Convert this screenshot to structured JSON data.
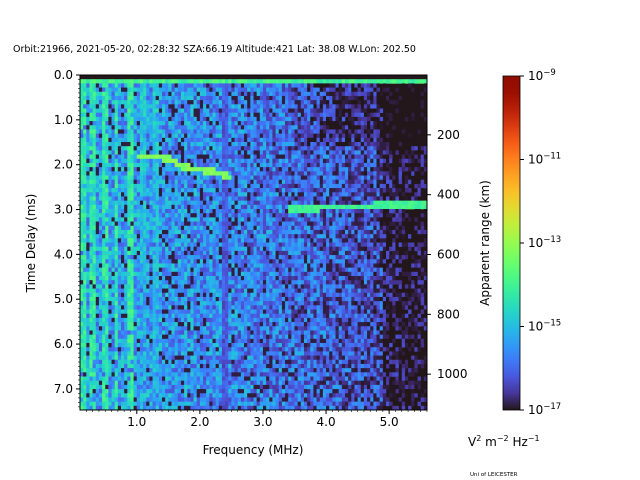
{
  "title": "Orbit:21966, 2021-05-20, 02:28:32 SZA:66.19 Altitude:421 Lat: 38.08 W.Lon: 202.50",
  "footer": "Uni of LEICESTER",
  "colorbar": {
    "label": "Apparent range (km)",
    "units_base": "V",
    "units_parts": [
      "2",
      " m",
      "−2",
      " Hz",
      "−1"
    ],
    "colormap": "turbo",
    "scale": "log",
    "range": [
      1e-17,
      1e-09
    ],
    "ticks": [
      {
        "exp": -9,
        "label": "10",
        "sup": "−9"
      },
      {
        "exp": -11,
        "label": "10",
        "sup": "−11"
      },
      {
        "exp": -13,
        "label": "10",
        "sup": "−13"
      },
      {
        "exp": -15,
        "label": "10",
        "sup": "−15"
      },
      {
        "exp": -17,
        "label": "10",
        "sup": "−17"
      }
    ]
  },
  "chart_data": {
    "type": "heatmap",
    "xlabel": "Frequency (MHz)",
    "ylabel": "Time Delay (ms)",
    "y2label": "Apparent range (km)",
    "xlim": [
      0.1,
      5.6
    ],
    "ylim": [
      7.47,
      0.0
    ],
    "xticks": [
      {
        "v": 1.0,
        "label": "1.0"
      },
      {
        "v": 2.0,
        "label": "2.0"
      },
      {
        "v": 3.0,
        "label": "3.0"
      },
      {
        "v": 4.0,
        "label": "4.0"
      },
      {
        "v": 5.0,
        "label": "5.0"
      }
    ],
    "yticks": [
      {
        "v": 0.0,
        "label": "0.0"
      },
      {
        "v": 1.0,
        "label": "1.0"
      },
      {
        "v": 2.0,
        "label": "2.0"
      },
      {
        "v": 3.0,
        "label": "3.0"
      },
      {
        "v": 4.0,
        "label": "4.0"
      },
      {
        "v": 5.0,
        "label": "5.0"
      },
      {
        "v": 6.0,
        "label": "6.0"
      },
      {
        "v": 7.0,
        "label": "7.0"
      }
    ],
    "y2ticks": [
      {
        "v": 200,
        "label": "200"
      },
      {
        "v": 400,
        "label": "400"
      },
      {
        "v": 600,
        "label": "600"
      },
      {
        "v": 800,
        "label": "800"
      },
      {
        "v": 1000,
        "label": "1000"
      }
    ],
    "km_per_ms": 149.9,
    "grid": {
      "freq_bins": 110,
      "delay_bins": 80
    },
    "background_log10": {
      "low_freq": -15.3,
      "high_freq": -16.6
    },
    "features": {
      "ionosphere_trace_1": {
        "freq": [
          1.0,
          1.5,
          1.7,
          2.2,
          2.5
        ],
        "delay": [
          1.8,
          1.85,
          2.05,
          2.15,
          2.3
        ],
        "log10": -13.2
      },
      "ionosphere_trace_2": {
        "freq": [
          3.4,
          4.0,
          4.8,
          5.6
        ],
        "delay": [
          3.0,
          2.95,
          2.92,
          2.92
        ],
        "log10": -14.0
      },
      "surface_row": {
        "delay": 0.15,
        "log10": -14.0
      },
      "bright_low_freq_lines_mhz": [
        0.15,
        0.3,
        0.5,
        0.68,
        0.9,
        1.1,
        1.3
      ],
      "dark_line_mhz": 2.4
    }
  }
}
